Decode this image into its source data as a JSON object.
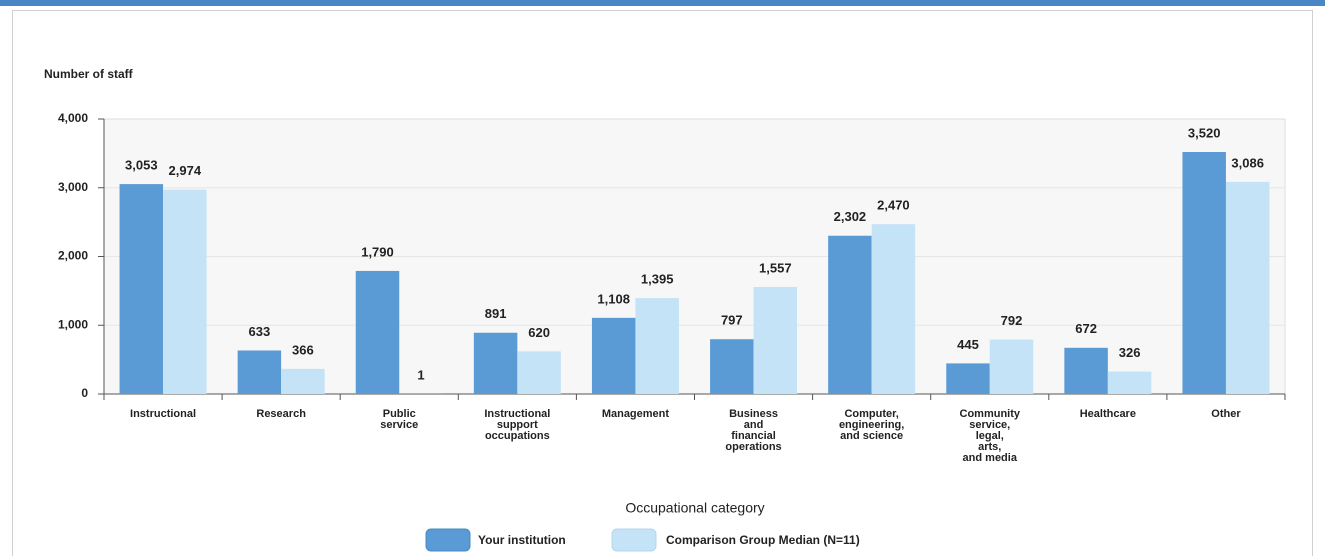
{
  "chart_data": {
    "type": "bar",
    "y_label": "Number of staff",
    "x_label": "Occupational category",
    "categories": [
      "Instructional",
      "Research",
      "Public\nservice",
      "Instructional\nsupport\noccupations",
      "Management",
      "Business\nand\nfinancial\noperations",
      "Computer,\nengineering,\nand science",
      "Community\nservice,\nlegal,\narts,\nand media",
      "Healthcare",
      "Other"
    ],
    "series": [
      {
        "name": "Your institution",
        "color": "#5b9bd5",
        "values": [
          3053,
          633,
          1790,
          891,
          1108,
          797,
          2302,
          445,
          672,
          3520
        ],
        "value_labels": [
          "3,053",
          "633",
          "1,790",
          "891",
          "1,108",
          "797",
          "2,302",
          "445",
          "672",
          "3,520"
        ]
      },
      {
        "name": "Comparison Group Median (N=11)",
        "color": "#c5e3f7",
        "values": [
          2974,
          366,
          1,
          620,
          1395,
          1557,
          2470,
          792,
          326,
          3086
        ],
        "value_labels": [
          "2,974",
          "366",
          "1",
          "620",
          "1,395",
          "1,557",
          "2,470",
          "792",
          "326",
          "3,086"
        ]
      }
    ],
    "ylim": [
      0,
      4000
    ],
    "yticks": [
      0,
      {
        "value": 1000,
        "label": "1,000"
      },
      {
        "value": 2000,
        "label": "2,000"
      },
      {
        "value": 3000,
        "label": "3,000"
      },
      {
        "value": 4000,
        "label": "4,000"
      }
    ],
    "grid": true
  }
}
